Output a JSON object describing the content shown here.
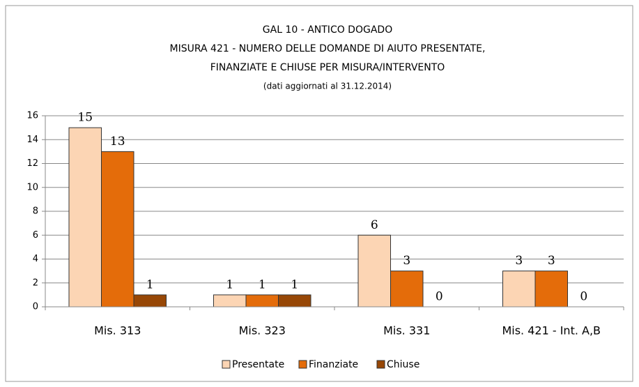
{
  "chart_data": {
    "type": "bar",
    "title": [
      "GAL 10 - ANTICO DOGADO",
      "MISURA 421  -  NUMERO DELLE DOMANDE DI AIUTO PRESENTATE,",
      "FINANZIATE E CHIUSE PER MISURA/INTERVENTO"
    ],
    "subtitle": "(dati aggiornati al 31.12.2014)",
    "categories": [
      "Mis. 313",
      "Mis. 323",
      "Mis. 331",
      "Mis. 421 - Int. A,B"
    ],
    "series": [
      {
        "name": "Presentate",
        "color": "#fcd5b4",
        "values": [
          15,
          1,
          6,
          3
        ]
      },
      {
        "name": "Finanziate",
        "color": "#e46c0a",
        "values": [
          13,
          1,
          3,
          3
        ]
      },
      {
        "name": "Chiuse",
        "color": "#974706",
        "values": [
          1,
          1,
          0,
          0
        ]
      }
    ],
    "ylim": [
      0,
      16
    ],
    "yticks": [
      0,
      2,
      4,
      6,
      8,
      10,
      12,
      14,
      16
    ],
    "grid": true,
    "legend": "bottom"
  }
}
